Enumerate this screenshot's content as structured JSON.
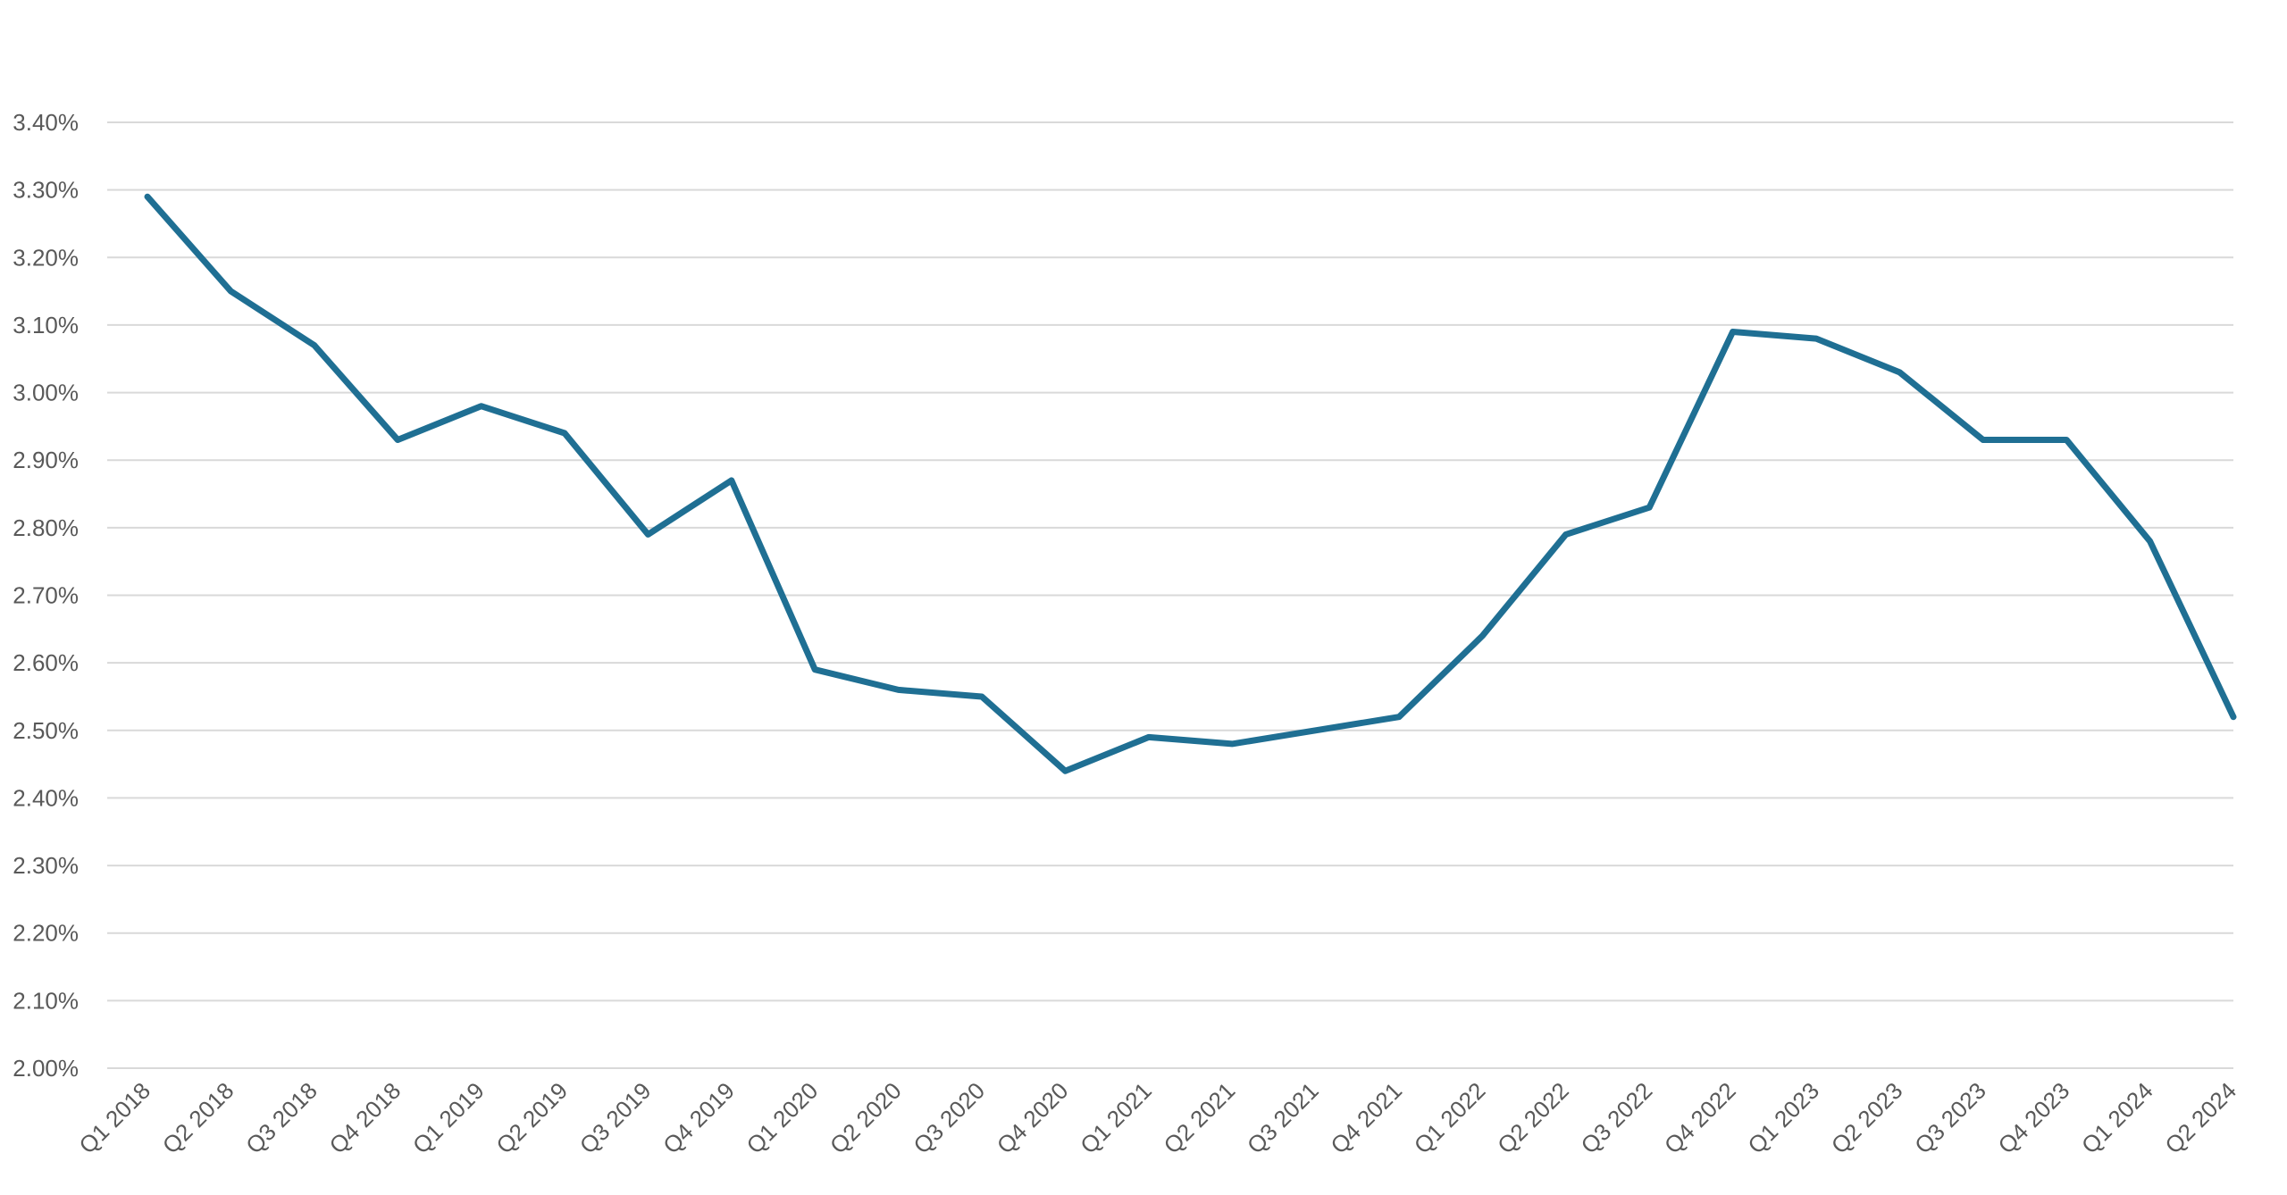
{
  "chart_data": {
    "type": "line",
    "title": "",
    "xlabel": "",
    "ylabel": "",
    "ylim": [
      0.02,
      0.034
    ],
    "y_tick_step": 0.001,
    "y_tick_labels": [
      "2.00%",
      "2.10%",
      "2.20%",
      "2.30%",
      "2.40%",
      "2.50%",
      "2.60%",
      "2.70%",
      "2.80%",
      "2.90%",
      "3.00%",
      "3.10%",
      "3.20%",
      "3.30%",
      "3.40%"
    ],
    "grid": "horizontal",
    "legend": "none",
    "categories": [
      "Q1 2018",
      "Q2 2018",
      "Q3 2018",
      "Q4 2018",
      "Q1 2019",
      "Q2 2019",
      "Q3 2019",
      "Q4 2019",
      "Q1 2020",
      "Q2 2020",
      "Q3 2020",
      "Q4 2020",
      "Q1 2021",
      "Q2 2021",
      "Q3 2021",
      "Q4 2021",
      "Q1 2022",
      "Q2 2022",
      "Q3 2022",
      "Q4 2022",
      "Q1 2023",
      "Q2 2023",
      "Q3 2023",
      "Q4 2023",
      "Q1 2024",
      "Q2 2024"
    ],
    "series": [
      {
        "color": "#1f6f93",
        "values": [
          0.0329,
          0.0315,
          0.0307,
          0.0293,
          0.0298,
          0.0294,
          0.0279,
          0.0287,
          0.0259,
          0.0256,
          0.0255,
          0.0244,
          0.0249,
          0.0248,
          0.025,
          0.0252,
          0.0264,
          0.0279,
          0.0283,
          0.0309,
          0.0308,
          0.0303,
          0.0293,
          0.0293,
          0.0278,
          0.0252
        ]
      }
    ]
  }
}
